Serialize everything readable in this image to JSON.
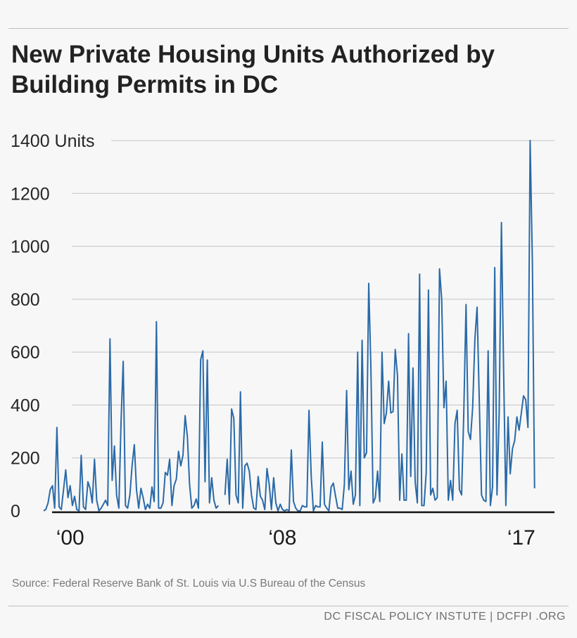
{
  "title": "New Private Housing Units Authorized by Building Permits in DC",
  "source": "Source: Federal Reserve Bank of St. Louis via U.S Bureau of the Census",
  "brand": "DC FISCAL POLICY INSTUTE  |  DCFPI .ORG",
  "colors": {
    "line": "#2a6aa8",
    "grid": "#c4c4c4",
    "axis": "#111111",
    "background": "#f7f7f7"
  },
  "chart_data": {
    "type": "line",
    "title": "New Private Housing Units Authorized by Building Permits in DC",
    "xlabel": "",
    "ylabel": "Units",
    "ylim": [
      0,
      1400
    ],
    "xlim": [
      1999.0,
      2018.25
    ],
    "grid": true,
    "y_ticks": [
      {
        "value": 0,
        "label": "0"
      },
      {
        "value": 200,
        "label": "200"
      },
      {
        "value": 400,
        "label": "400"
      },
      {
        "value": 600,
        "label": "600"
      },
      {
        "value": 800,
        "label": "800"
      },
      {
        "value": 1000,
        "label": "1000"
      },
      {
        "value": 1200,
        "label": "1200"
      },
      {
        "value": 1400,
        "label": "1400 Units"
      }
    ],
    "x_ticks": [
      {
        "value": 2000.0,
        "label": "‘00"
      },
      {
        "value": 2008.0,
        "label": "‘08"
      },
      {
        "value": 2017.0,
        "label": "‘17"
      }
    ],
    "series": [
      {
        "frequency": "monthly",
        "start": "1999-01",
        "values": [
          0,
          5,
          30,
          80,
          95,
          10,
          315,
          15,
          5,
          80,
          155,
          50,
          95,
          20,
          55,
          5,
          0,
          210,
          15,
          5,
          110,
          85,
          30,
          195,
          40,
          0,
          10,
          25,
          40,
          20,
          650,
          115,
          245,
          60,
          10,
          335,
          565,
          20,
          10,
          60,
          170,
          250,
          80,
          10,
          85,
          50,
          5,
          25,
          10,
          90,
          35,
          715,
          10,
          10,
          30,
          145,
          135,
          195,
          20,
          95,
          120,
          225,
          170,
          210,
          360,
          280,
          100,
          10,
          20,
          45,
          10,
          570,
          605,
          110,
          570,
          30,
          125,
          40,
          10,
          20,
          null,
          null,
          60,
          195,
          25,
          385,
          350,
          60,
          30,
          450,
          10,
          170,
          180,
          150,
          60,
          10,
          5,
          130,
          55,
          40,
          5,
          160,
          100,
          5,
          125,
          30,
          0,
          25,
          5,
          0,
          5,
          0,
          230,
          35,
          10,
          0,
          0,
          20,
          15,
          15,
          380,
          130,
          0,
          20,
          15,
          15,
          260,
          25,
          10,
          0,
          90,
          105,
          55,
          10,
          10,
          5,
          100,
          455,
          80,
          150,
          25,
          60,
          600,
          20,
          645,
          200,
          220,
          860,
          540,
          30,
          50,
          150,
          35,
          600,
          330,
          370,
          490,
          370,
          375,
          610,
          510,
          40,
          215,
          40,
          40,
          670,
          130,
          540,
          110,
          30,
          895,
          20,
          20,
          145,
          835,
          60,
          85,
          40,
          50,
          915,
          800,
          390,
          490,
          40,
          115,
          40,
          330,
          380,
          80,
          60,
          370,
          780,
          300,
          270,
          390,
          650,
          770,
          420,
          60,
          40,
          35,
          605,
          20,
          90,
          920,
          60,
          370,
          1090,
          530,
          20,
          355,
          140,
          235,
          265,
          355,
          305,
          370,
          435,
          420,
          315,
          1400,
          940,
          85
        ]
      }
    ]
  }
}
